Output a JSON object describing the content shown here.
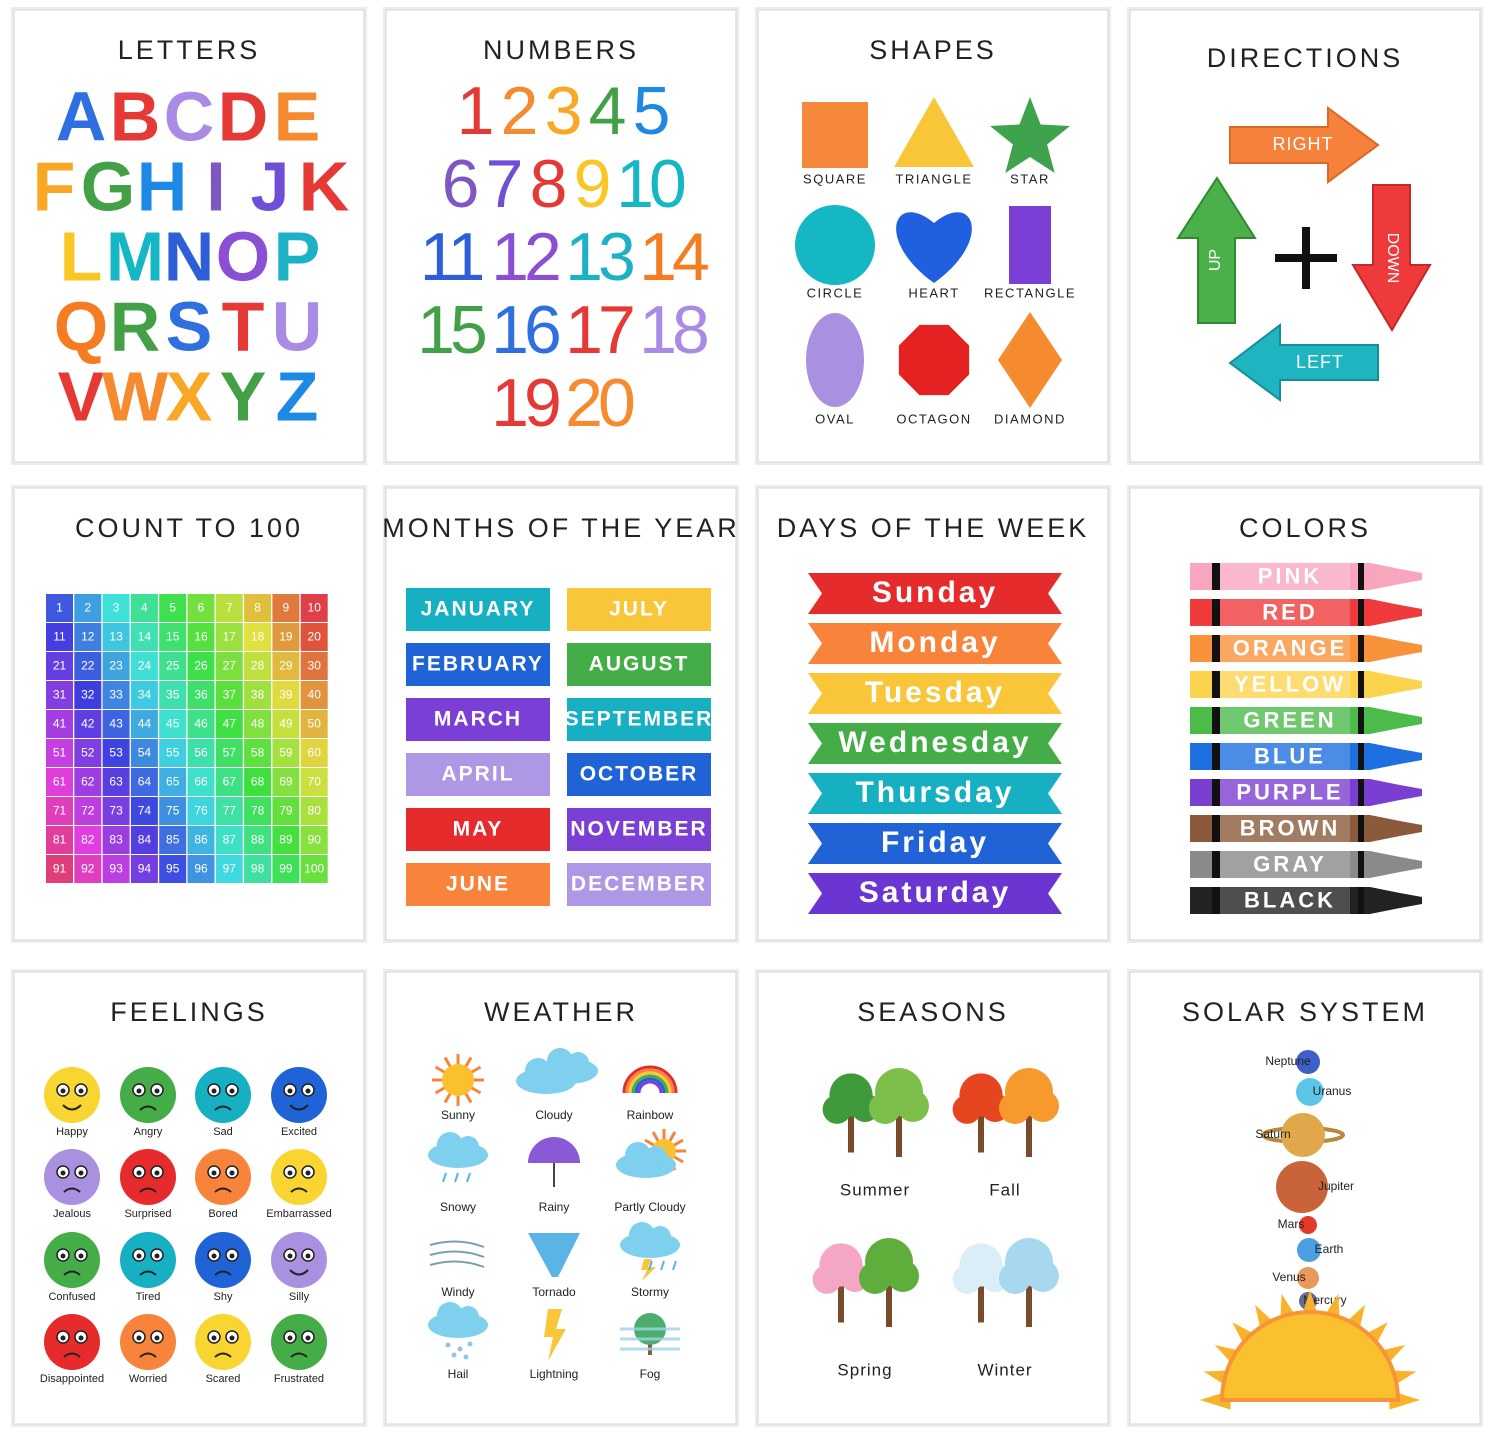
{
  "posters": [
    {
      "title": "LETTERS",
      "items": [
        [
          "A",
          "B",
          "C",
          "D",
          "E"
        ],
        [
          "F",
          "G",
          "H",
          "I",
          "J",
          "K"
        ],
        [
          "L",
          "M",
          "N",
          "O",
          "P"
        ],
        [
          "Q",
          "R",
          "S",
          "T",
          "U"
        ],
        [
          "V",
          "W",
          "X",
          "Y",
          "Z"
        ]
      ]
    },
    {
      "title": "NUMBERS",
      "items": [
        [
          1,
          2,
          3,
          4,
          5
        ],
        [
          6,
          7,
          8,
          9,
          10
        ],
        [
          11,
          12,
          13,
          14
        ],
        [
          15,
          16,
          17,
          18
        ],
        [
          19,
          20
        ]
      ]
    },
    {
      "title": "SHAPES",
      "items": [
        "SQUARE",
        "TRIANGLE",
        "STAR",
        "CIRCLE",
        "HEART",
        "RECTANGLE",
        "OVAL",
        "OCTAGON",
        "DIAMOND"
      ]
    },
    {
      "title": "DIRECTIONS",
      "items": [
        "RIGHT",
        "UP",
        "DOWN",
        "LEFT"
      ]
    },
    {
      "title": "COUNT TO 100",
      "items": [
        1,
        2,
        3,
        4,
        5,
        6,
        7,
        8,
        9,
        10,
        11,
        12,
        13,
        14,
        15,
        16,
        17,
        18,
        19,
        20,
        21,
        22,
        23,
        24,
        25,
        26,
        27,
        28,
        29,
        30,
        31,
        32,
        33,
        34,
        35,
        36,
        37,
        38,
        39,
        40,
        41,
        42,
        43,
        44,
        45,
        46,
        47,
        48,
        49,
        50,
        51,
        52,
        53,
        54,
        55,
        56,
        57,
        58,
        59,
        60,
        61,
        62,
        63,
        64,
        65,
        66,
        67,
        68,
        69,
        70,
        71,
        72,
        73,
        74,
        75,
        76,
        77,
        78,
        79,
        80,
        81,
        82,
        83,
        84,
        85,
        86,
        87,
        88,
        89,
        90,
        91,
        92,
        93,
        94,
        95,
        96,
        97,
        98,
        99,
        100
      ]
    },
    {
      "title": "MONTHS OF THE YEAR",
      "items": [
        "JANUARY",
        "FEBRUARY",
        "MARCH",
        "APRIL",
        "MAY",
        "JUNE",
        "JULY",
        "AUGUST",
        "SEPTEMBER",
        "OCTOBER",
        "NOVEMBER",
        "DECEMBER"
      ]
    },
    {
      "title": "DAYS OF THE WEEK",
      "items": [
        "Sunday",
        "Monday",
        "Tuesday",
        "Wednesday",
        "Thursday",
        "Friday",
        "Saturday"
      ]
    },
    {
      "title": "COLORS",
      "items": [
        "PINK",
        "RED",
        "ORANGE",
        "YELLOW",
        "GREEN",
        "BLUE",
        "PURPLE",
        "BROWN",
        "GRAY",
        "BLACK"
      ]
    },
    {
      "title": "FEELINGS",
      "items": [
        "Happy",
        "Angry",
        "Sad",
        "Excited",
        "Jealous",
        "Surprised",
        "Bored",
        "Embarrassed",
        "Confused",
        "Tired",
        "Shy",
        "Silly",
        "Disappointed",
        "Worried",
        "Scared",
        "Frustrated"
      ]
    },
    {
      "title": "WEATHER",
      "items": [
        "Sunny",
        "Cloudy",
        "Rainbow",
        "Snowy",
        "Rainy",
        "Partly Cloudy",
        "Windy",
        "Tornado",
        "Stormy",
        "Hail",
        "Lightning",
        "Fog"
      ]
    },
    {
      "title": "SEASONS",
      "items": [
        "Summer",
        "Fall",
        "Spring",
        "Winter"
      ]
    },
    {
      "title": "SOLAR SYSTEM",
      "items": [
        "Neptune",
        "Uranus",
        "Saturn",
        "Jupiter",
        "Mars",
        "Earth",
        "Venus",
        "Mercury"
      ]
    }
  ]
}
